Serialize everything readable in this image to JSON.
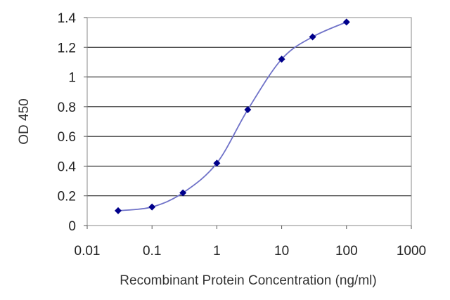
{
  "chart_data": {
    "type": "line",
    "title": "",
    "xlabel": "Recombinant Protein Concentration (ng/ml)",
    "ylabel": "OD 450",
    "x_scale": "log",
    "xlim": [
      0.01,
      1000
    ],
    "ylim": [
      0,
      1.4
    ],
    "x_ticks": [
      0.01,
      0.1,
      1,
      10,
      100,
      1000
    ],
    "x_tick_labels": [
      "0.01",
      "0.1",
      "1",
      "10",
      "100",
      "1000"
    ],
    "y_ticks": [
      0,
      0.2,
      0.4,
      0.6,
      0.8,
      1,
      1.2,
      1.4
    ],
    "y_tick_labels": [
      "0",
      "0.2",
      "0.4",
      "0.6",
      "0.8",
      "1",
      "1.2",
      "1.4"
    ],
    "grid": "horizontal",
    "legend": "none",
    "series": [
      {
        "x": [
          0.03,
          0.1,
          0.3,
          1,
          3,
          10,
          30,
          100
        ],
        "y": [
          0.1,
          0.125,
          0.22,
          0.42,
          0.78,
          1.12,
          1.27,
          1.37
        ],
        "marker": "diamond",
        "color": "#00008b",
        "line_color": "#6f72c8"
      }
    ]
  }
}
